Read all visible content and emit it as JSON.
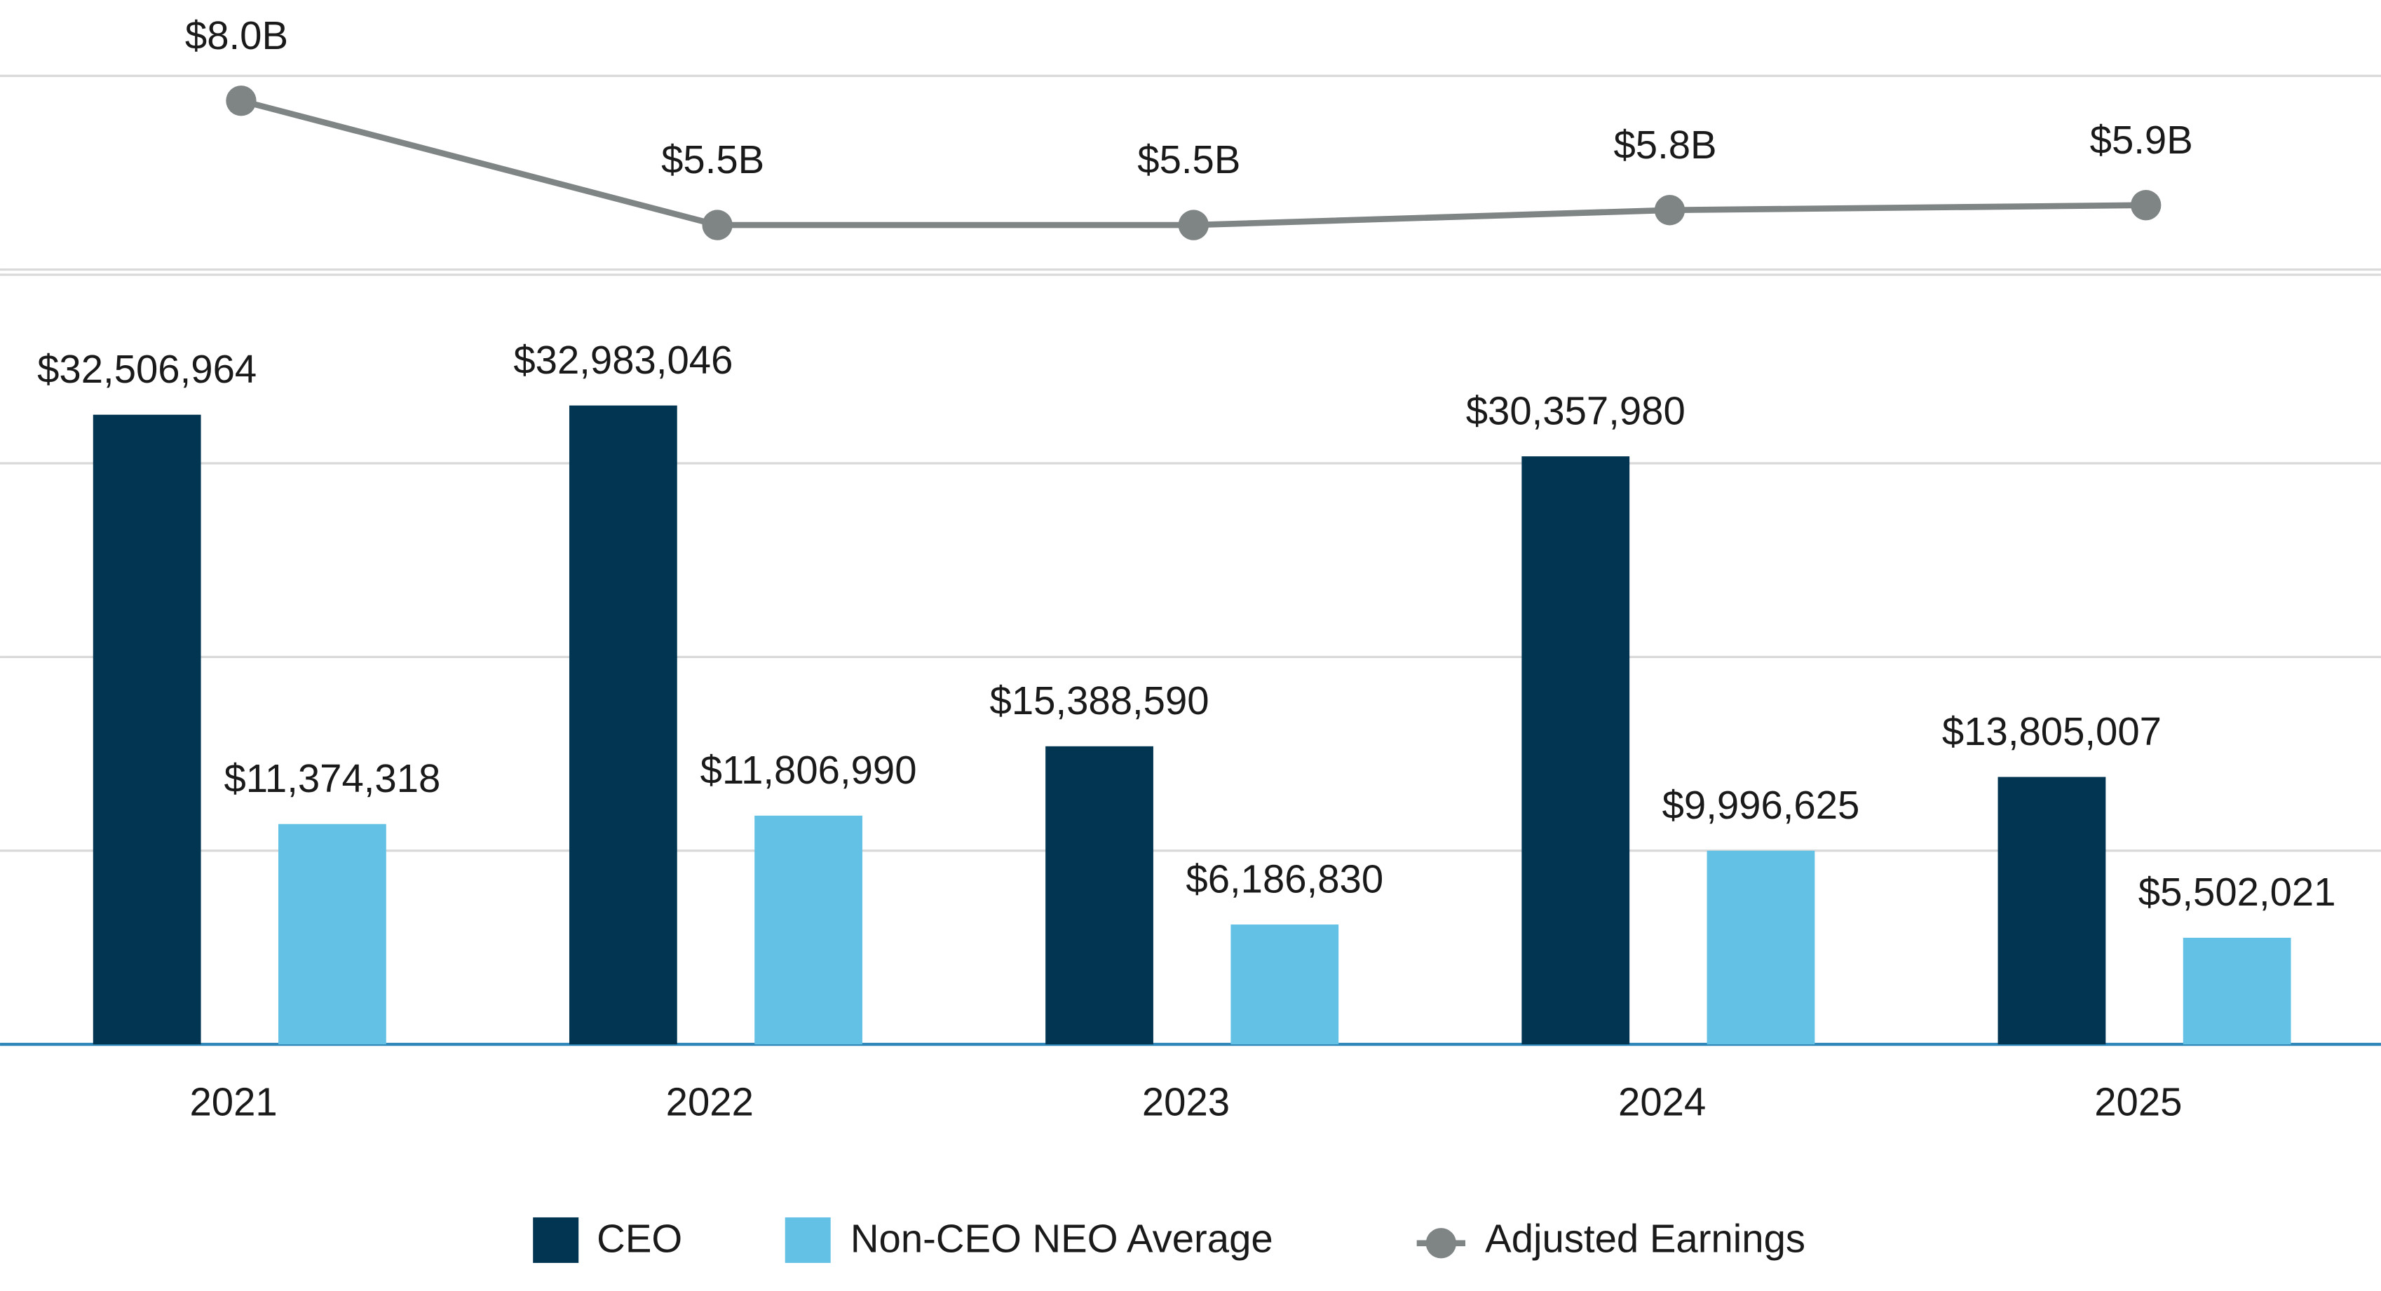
{
  "chart_data": {
    "type": "bar",
    "categories": [
      "2021",
      "2022",
      "2023",
      "2024",
      "2025"
    ],
    "series": [
      {
        "name": "CEO",
        "color": "#023552",
        "type": "bar",
        "values": [
          32506964,
          32983046,
          15388590,
          30357980,
          13805007
        ],
        "value_labels": [
          "$32,506,964",
          "$32,983,046",
          "$15,388,590",
          "$30,357,980",
          "$13,805,007"
        ]
      },
      {
        "name": "Non-CEO NEO Average",
        "color": "#62c1e5",
        "type": "bar",
        "values": [
          11374318,
          11806990,
          6186830,
          9996625,
          5502021
        ],
        "value_labels": [
          "$11,374,318",
          "$11,806,990",
          "$6,186,830",
          "$9,996,625",
          "$5,502,021"
        ]
      },
      {
        "name": "Adjusted Earnings",
        "color": "#7f8484",
        "type": "line",
        "axis": "y2",
        "values": [
          8.0,
          5.5,
          5.5,
          5.8,
          5.9
        ],
        "value_labels": [
          "$8.0B",
          "$5.5B",
          "$5.5B",
          "$5.8B",
          "$5.9B"
        ]
      }
    ],
    "ylim": [
      0,
      50000000
    ],
    "yticks": [
      0,
      10000000,
      20000000,
      30000000,
      40000000,
      50000000
    ],
    "y2lim": [
      4.5,
      8.5
    ],
    "grid": true,
    "legend": "bottom"
  }
}
